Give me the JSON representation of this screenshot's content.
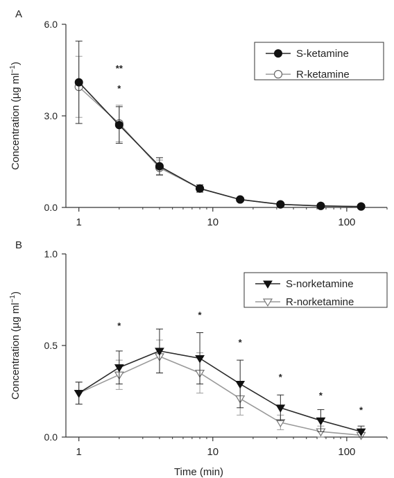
{
  "chart_data": [
    {
      "panel_label": "A",
      "type": "line",
      "title": "",
      "xlabel": "",
      "ylabel": "Concentration (µg ml",
      "ylabel_sup": "−1",
      "ylabel_tail": ")",
      "x_scale": "log",
      "xlim": [
        0.8,
        200
      ],
      "ylim": [
        0,
        6
      ],
      "x_ticks": [
        1,
        10,
        100
      ],
      "x_tick_labels": [
        "1",
        "10",
        "100"
      ],
      "y_ticks": [
        0,
        3,
        6
      ],
      "y_tick_labels": [
        "0.0",
        "3.0",
        "6.0"
      ],
      "grid": false,
      "legend_position": "top-right",
      "series": [
        {
          "name": "S-ketamine",
          "marker": "circle-filled",
          "color": "#2a2a2a",
          "x": [
            1,
            2,
            4,
            8,
            16,
            32,
            64,
            128
          ],
          "y": [
            4.1,
            2.7,
            1.35,
            0.62,
            0.26,
            0.1,
            0.05,
            0.03
          ],
          "error": [
            1.35,
            0.6,
            0.28,
            0.12,
            0.06,
            0.03,
            0.02,
            0.02
          ]
        },
        {
          "name": "R-ketamine",
          "marker": "circle-open",
          "color": "#9a9a9a",
          "x": [
            1,
            2,
            4,
            8,
            16,
            32,
            64,
            128
          ],
          "y": [
            3.95,
            2.75,
            1.3,
            0.62,
            0.26,
            0.1,
            0.05,
            0.03
          ],
          "error": [
            1.0,
            0.6,
            0.25,
            0.12,
            0.06,
            0.03,
            0.02,
            0.02
          ]
        }
      ],
      "annotations": [
        {
          "text": "**",
          "x": 2,
          "y": 4.45
        },
        {
          "text": "*",
          "x": 2,
          "y": 3.8
        }
      ]
    },
    {
      "panel_label": "B",
      "type": "line",
      "title": "",
      "xlabel": "Time (min)",
      "ylabel": "Concentration (µg ml",
      "ylabel_sup": "−1",
      "ylabel_tail": ")",
      "x_scale": "log",
      "xlim": [
        0.8,
        200
      ],
      "ylim": [
        0,
        1
      ],
      "x_ticks": [
        1,
        10,
        100
      ],
      "x_tick_labels": [
        "1",
        "10",
        "100"
      ],
      "y_ticks": [
        0,
        0.5,
        1
      ],
      "y_tick_labels": [
        "0.0",
        "0.5",
        "1.0"
      ],
      "grid": false,
      "legend_position": "top-right",
      "series": [
        {
          "name": "S-norketamine",
          "marker": "triangle-down-filled",
          "color": "#2a2a2a",
          "x": [
            1,
            2,
            4,
            8,
            16,
            32,
            64,
            128
          ],
          "y": [
            0.24,
            0.38,
            0.47,
            0.43,
            0.29,
            0.16,
            0.09,
            0.03
          ],
          "error": [
            0.06,
            0.09,
            0.12,
            0.14,
            0.13,
            0.07,
            0.06,
            0.03
          ]
        },
        {
          "name": "R-norketamine",
          "marker": "triangle-down-open",
          "color": "#9a9a9a",
          "x": [
            1,
            2,
            4,
            8,
            16,
            32,
            64,
            128
          ],
          "y": [
            0.24,
            0.34,
            0.44,
            0.35,
            0.21,
            0.08,
            0.03,
            0.01
          ],
          "error": [
            0.06,
            0.08,
            0.09,
            0.11,
            0.09,
            0.04,
            0.03,
            0.03
          ]
        }
      ],
      "annotations": [
        {
          "text": "*",
          "x": 2,
          "y": 0.59
        },
        {
          "text": "*",
          "x": 8,
          "y": 0.65
        },
        {
          "text": "*",
          "x": 16,
          "y": 0.5
        },
        {
          "text": "*",
          "x": 32,
          "y": 0.31
        },
        {
          "text": "*",
          "x": 64,
          "y": 0.21
        },
        {
          "text": "*",
          "x": 128,
          "y": 0.13
        }
      ]
    }
  ]
}
